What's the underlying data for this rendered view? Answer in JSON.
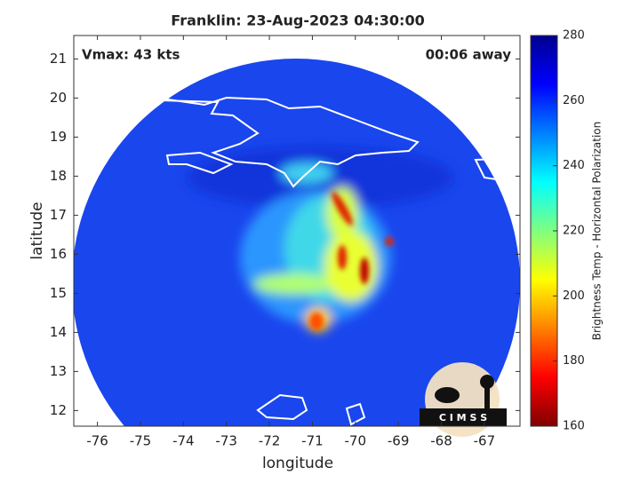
{
  "chart_data": {
    "type": "heatmap",
    "title": "Franklin: 23-Aug-2023 04:30:00",
    "xlabel": "longitude",
    "ylabel": "latitude",
    "xlim": [
      -76.55,
      -66.17
    ],
    "ylim": [
      11.6,
      21.6
    ],
    "xticks": [
      -76,
      -75,
      -74,
      -73,
      -72,
      -71,
      -70,
      -69,
      -68,
      -67
    ],
    "yticks": [
      12,
      13,
      14,
      15,
      16,
      17,
      18,
      19,
      20,
      21
    ],
    "annotations": [
      "Vmax: 43 kts",
      "00:06 away"
    ],
    "logo": "C I M S S",
    "colorbar": {
      "label": "Brightness Temp - Horizontal Polarization",
      "lim": [
        160,
        280
      ],
      "ticks": [
        160,
        180,
        200,
        220,
        240,
        260,
        280
      ],
      "colors": [
        "#7f0000",
        "#ff0000",
        "#ff8000",
        "#ffff00",
        "#80ff80",
        "#00ffff",
        "#0080ff",
        "#0000ff",
        "#00008f"
      ]
    }
  }
}
